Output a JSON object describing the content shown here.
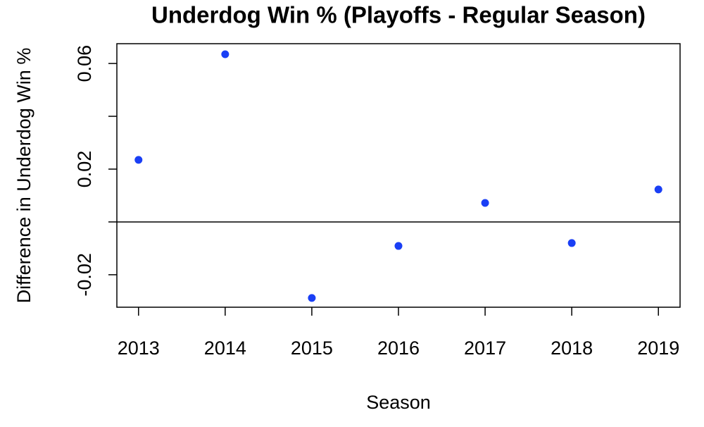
{
  "chart_data": {
    "type": "scatter",
    "title": "Underdog Win % (Playoffs - Regular Season)",
    "xlabel": "Season",
    "ylabel": "Difference in Underdog Win %",
    "x": [
      2013,
      2014,
      2015,
      2016,
      2017,
      2018,
      2019
    ],
    "values": [
      0.0235,
      0.0635,
      -0.0288,
      -0.0091,
      0.0072,
      -0.008,
      0.0123
    ],
    "color": "#1a3ff5",
    "xlim": [
      2012.75,
      2019.25
    ],
    "xticks": [
      2013,
      2014,
      2015,
      2016,
      2017,
      2018,
      2019
    ],
    "ylim": [
      -0.0323,
      0.0675
    ],
    "yticks": [
      -0.02,
      {
        "value": 0,
        "label": null
      },
      0.02,
      {
        "value": 0.04,
        "label": null
      },
      0.06
    ],
    "hline": 0
  }
}
